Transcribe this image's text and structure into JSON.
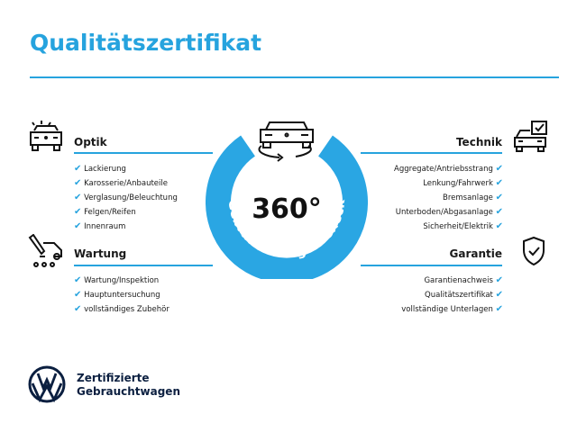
{
  "title": "Qualitätszertifikat",
  "colors": {
    "accent": "#26a3de",
    "brand_navy": "#0b1f40"
  },
  "center": {
    "big": "360°",
    "ring_text": "Gebrauchtwagen-Check",
    "icon": "car-rotate-icon"
  },
  "sections": {
    "optik": {
      "label": "Optik",
      "icon": "car-lights-icon",
      "items": [
        "Lackierung",
        "Karosserie/Anbauteile",
        "Verglasung/Beleuchtung",
        "Felgen/Reifen",
        "Innenraum"
      ]
    },
    "wartung": {
      "label": "Wartung",
      "icon": "car-service-icon",
      "items": [
        "Wartung/Inspektion",
        "Hauptuntersuchung",
        "vollständiges Zubehör"
      ]
    },
    "technik": {
      "label": "Technik",
      "icon": "car-checkbox-icon",
      "items": [
        "Aggregate/Antriebsstrang",
        "Lenkung/Fahrwerk",
        "Bremsanlage",
        "Unterboden/Abgasanlage",
        "Sicherheit/Elektrik"
      ]
    },
    "garantie": {
      "label": "Garantie",
      "icon": "shield-check-icon",
      "items": [
        "Garantienachweis",
        "Qualitätszertifikat",
        "vollständige Unterlagen"
      ]
    }
  },
  "check": "✔",
  "brand": {
    "line1": "Zertifizierte",
    "line2": "Gebrauchtwagen"
  }
}
